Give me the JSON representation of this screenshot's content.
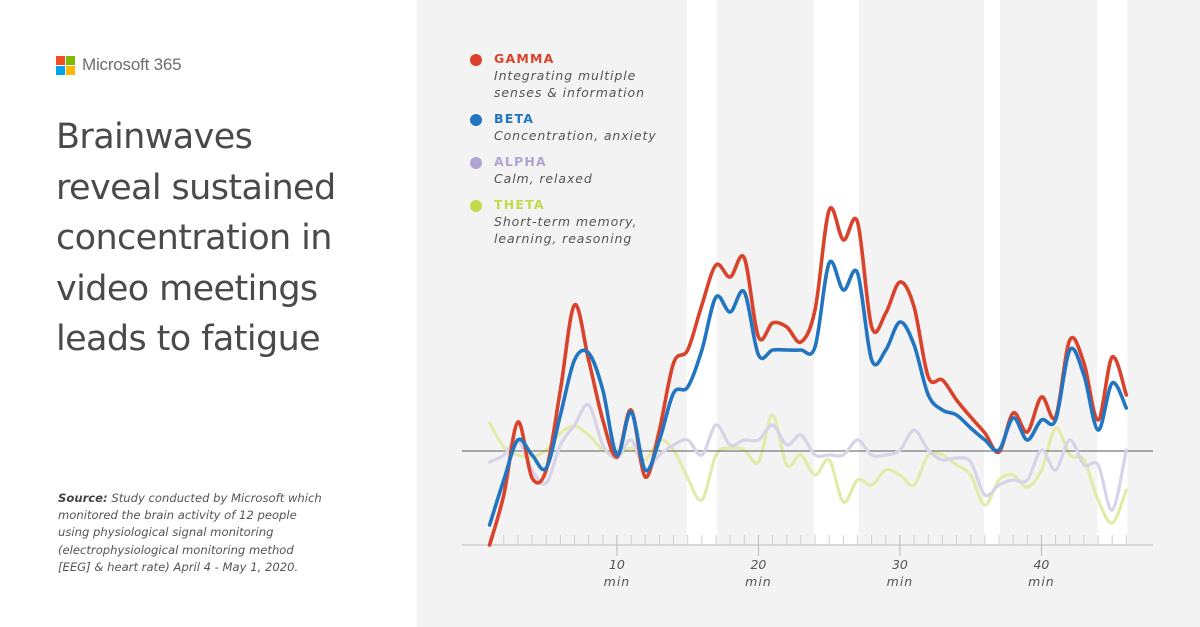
{
  "brand": {
    "name": "Microsoft 365",
    "logo_colors": [
      "#f25022",
      "#7fba00",
      "#00a4ef",
      "#ffb900"
    ]
  },
  "headline": {
    "lines": [
      "Brainwaves",
      "reveal sustained",
      "concentration in",
      "video meetings",
      "leads to fatigue"
    ]
  },
  "source": {
    "label": "Source:",
    "lines": [
      " Study conducted by Microsoft which",
      "monitored the brain activity of 12 people",
      "using physiological signal monitoring",
      "(electrophysiological monitoring method",
      "[EEG] & heart rate) April 4 - May 1, 2020."
    ]
  },
  "legend": [
    {
      "name": "GAMMA",
      "desc_lines": [
        "Integrating multiple",
        "senses & information"
      ],
      "color": "#d9432b"
    },
    {
      "name": "BETA",
      "desc_lines": [
        "Concentration, anxiety"
      ],
      "color": "#2275c0"
    },
    {
      "name": "ALPHA",
      "desc_lines": [
        "Calm, relaxed"
      ],
      "color": "#b1a4d4"
    },
    {
      "name": "THETA",
      "desc_lines": [
        "Short-term memory,",
        "learning, reasoning"
      ],
      "color": "#c5da4a"
    }
  ],
  "chart_data": {
    "type": "line",
    "title": "",
    "xlabel": "",
    "ylabel": "",
    "x_unit_label": "min",
    "x": [
      1,
      2,
      3,
      4,
      5,
      6,
      7,
      8,
      9,
      10,
      11,
      12,
      13,
      14,
      15,
      16,
      17,
      18,
      19,
      20,
      21,
      22,
      23,
      24,
      25,
      26,
      27,
      28,
      29,
      30,
      31,
      32,
      33,
      34,
      35,
      36,
      37,
      38,
      39,
      40,
      41,
      42,
      43,
      44,
      45,
      46
    ],
    "xlim": [
      1,
      46
    ],
    "x_ticks_major": [
      10,
      20,
      30,
      40
    ],
    "x_ticks_minor_every": 1,
    "ylim": [
      -9.4,
      24.1
    ],
    "baseline": 0,
    "y_axis_shown": false,
    "grid": false,
    "legend_position": "top-left",
    "highlight_bands": [
      [
        15,
        17
      ],
      [
        24,
        27
      ],
      [
        36,
        37
      ],
      [
        44,
        46
      ]
    ],
    "band_color": "#ffffff",
    "series": [
      {
        "name": "GAMMA",
        "color": "#d9432b",
        "values": [
          -9.4,
          -4.4,
          2.9,
          -2.7,
          -1.9,
          6.1,
          14.6,
          9.1,
          3.1,
          -0.6,
          4.1,
          -2.6,
          2.1,
          8.8,
          10.1,
          14.6,
          18.6,
          17.4,
          19.3,
          11.4,
          12.8,
          12.4,
          10.9,
          14.1,
          24.1,
          21.1,
          22.9,
          12.4,
          13.8,
          16.9,
          14.4,
          7.4,
          7.1,
          5.1,
          3.4,
          1.8,
          -0.1,
          3.8,
          1.9,
          5.4,
          3.4,
          11.1,
          8.8,
          3.1,
          9.4,
          5.6
        ]
      },
      {
        "name": "BETA",
        "color": "#2275c0",
        "values": [
          -7.4,
          -2.9,
          1.1,
          -0.4,
          -1.7,
          3.6,
          9.1,
          9.8,
          6.1,
          -0.4,
          3.9,
          -1.9,
          1.1,
          5.8,
          6.4,
          10.1,
          15.4,
          13.9,
          15.9,
          9.6,
          10.1,
          10.1,
          10.1,
          10.4,
          18.8,
          16.1,
          17.8,
          9.1,
          10.1,
          12.9,
          10.6,
          5.6,
          4.1,
          3.6,
          2.3,
          1.1,
          0.1,
          3.3,
          1.1,
          3.1,
          3.1,
          10.1,
          7.6,
          2.1,
          6.8,
          4.3
        ]
      },
      {
        "name": "ALPHA",
        "color": "#d8d3e8",
        "values": [
          -1.1,
          -0.4,
          1.1,
          -1.9,
          -3.2,
          0.6,
          2.6,
          4.6,
          0.6,
          -0.7,
          1.1,
          -1.9,
          -0.4,
          0.6,
          1.1,
          -0.4,
          2.6,
          0.6,
          1.1,
          1.1,
          2.6,
          0.6,
          1.6,
          -0.4,
          -0.4,
          -0.4,
          1.1,
          -0.4,
          -0.4,
          0.1,
          2.1,
          0.1,
          -0.9,
          -0.7,
          -1.1,
          -4.4,
          -3.4,
          -2.9,
          -2.9,
          0.1,
          -1.9,
          1.1,
          -1.4,
          -1.4,
          -5.9,
          0.1
        ]
      },
      {
        "name": "THETA",
        "color": "#e3ebaa",
        "values": [
          2.8,
          0.4,
          -0.4,
          -0.6,
          0.1,
          1.8,
          2.5,
          1.6,
          0.1,
          -0.4,
          0.3,
          -0.9,
          1.1,
          0.1,
          -2.7,
          -4.9,
          -0.4,
          0.3,
          0.1,
          -1.1,
          3.6,
          -1.4,
          -0.4,
          -2.4,
          -0.9,
          -5.1,
          -2.9,
          -3.4,
          -1.9,
          -2.4,
          -3.4,
          -0.4,
          -0.4,
          -1.4,
          -2.4,
          -5.4,
          -2.9,
          -2.4,
          -3.6,
          -1.9,
          2.3,
          -0.4,
          -0.9,
          -4.9,
          -7.2,
          -3.9
        ]
      }
    ]
  }
}
